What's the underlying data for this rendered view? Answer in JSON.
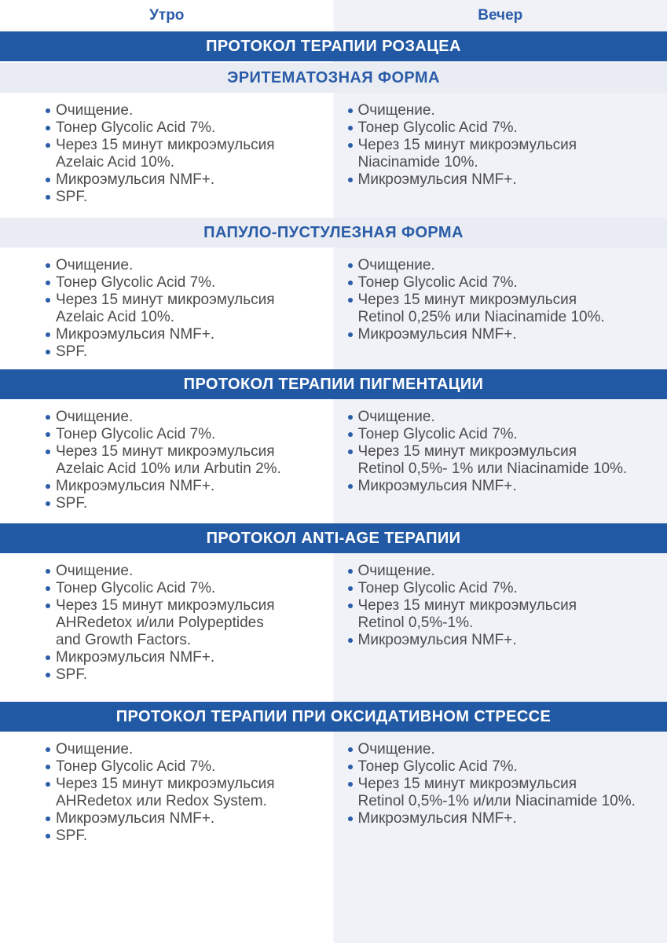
{
  "colors": {
    "banner_blue": "#2259a4",
    "heading_blue": "#2a5ca8",
    "evening_column_bg": "#f0f2f7",
    "sub_banner_bg": "#e9ecf2",
    "body_text": "#4c4c4e"
  },
  "header": {
    "morning_label": "Утро",
    "evening_label": "Вечер"
  },
  "blocks": [
    {
      "type": "banner-blue",
      "title": "ПРОТОКОЛ ТЕРАПИИ РОЗАЦЕА"
    },
    {
      "type": "banner-gray",
      "title": "ЭРИТЕМАТОЗНАЯ ФОРМА"
    },
    {
      "type": "content",
      "morning": [
        "Очищение.",
        "Тонер Glycolic Acid 7%.",
        "Через 15 минут микроэмульсия\nAzelaic Acid 10%.",
        "Микроэмульсия NMF+.",
        "SPF."
      ],
      "evening": [
        "Очищение.",
        "Тонер Glycolic Acid 7%.",
        "Через 15 минут микроэмульсия\nNiacinamide 10%.",
        "Микроэмульсия NMF+."
      ]
    },
    {
      "type": "banner-gray",
      "title": "ПАПУЛО-ПУСТУЛЕЗНАЯ ФОРМА"
    },
    {
      "type": "content",
      "morning": [
        "Очищение.",
        "Тонер Glycolic Acid 7%.",
        "Через 15 минут микроэмульсия\nAzelaic Acid 10%.",
        "Микроэмульсия NMF+.",
        "SPF."
      ],
      "evening": [
        "Очищение.",
        "Тонер Glycolic Acid 7%.",
        "Через 15 минут микроэмульсия\nRetinol 0,25% или Niacinamide 10%.",
        "Микроэмульсия NMF+."
      ]
    },
    {
      "type": "banner-blue",
      "title": "ПРОТОКОЛ ТЕРАПИИ ПИГМЕНТАЦИИ"
    },
    {
      "type": "content",
      "morning": [
        "Очищение.",
        "Тонер Glycolic Acid 7%.",
        "Через 15 минут микроэмульсия\nAzelaic Acid 10% или Arbutin 2%.",
        "Микроэмульсия NMF+.",
        "SPF."
      ],
      "evening": [
        "Очищение.",
        "Тонер Glycolic Acid 7%.",
        "Через 15 минут микроэмульсия\nRetinol 0,5%- 1% или Niacinamide 10%.",
        "Микроэмульсия NMF+."
      ]
    },
    {
      "type": "banner-blue",
      "title": "ПРОТОКОЛ ANTI-AGE ТЕРАПИИ"
    },
    {
      "type": "content",
      "morning": [
        "Очищение.",
        "Тонер Glycolic Acid 7%.",
        "Через 15 минут микроэмульсия\nAHRedetox и/или Polypeptides\nand Growth Factors.",
        "Микроэмульсия NMF+.",
        "SPF."
      ],
      "evening": [
        "Очищение.",
        "Тонер Glycolic Acid 7%.",
        "Через 15 минут микроэмульсия\nRetinol 0,5%-1%.",
        "Микроэмульсия NMF+."
      ]
    },
    {
      "type": "banner-blue",
      "title": "ПРОТОКОЛ ТЕРАПИИ ПРИ ОКСИДАТИВНОМ СТРЕССЕ"
    },
    {
      "type": "content",
      "morning": [
        "Очищение.",
        "Тонер Glycolic Acid 7%.",
        "Через 15 минут микроэмульсия\nAHRedetox или Redox System.",
        "Микроэмульсия NMF+.",
        "SPF."
      ],
      "evening": [
        "Очищение.",
        "Тонер Glycolic Acid 7%.",
        "Через 15 минут микроэмульсия\nRetinol 0,5%-1% и/или Niacinamide 10%.",
        "Микроэмульсия NMF+."
      ]
    }
  ]
}
